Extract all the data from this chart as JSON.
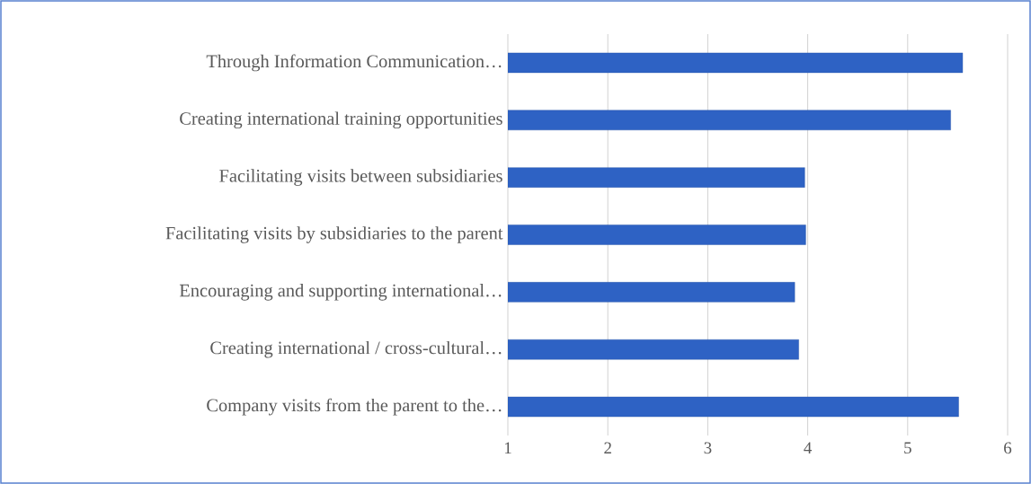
{
  "chart_data": {
    "type": "bar",
    "orientation": "horizontal",
    "categories": [
      "Through Information Communication…",
      "Creating international training opportunities",
      "Facilitating visits between subsidiaries",
      "Facilitating visits by subsidiaries to the parent",
      "Encouraging and supporting international…",
      "Creating international / cross-cultural…",
      "Company visits from the parent to the…"
    ],
    "values": [
      5.55,
      5.43,
      3.97,
      3.98,
      3.87,
      3.91,
      5.51
    ],
    "color": "#2e62c4",
    "xlim": [
      1,
      6
    ],
    "xticks": [
      1,
      2,
      3,
      4,
      5,
      6
    ],
    "grid": "x"
  }
}
